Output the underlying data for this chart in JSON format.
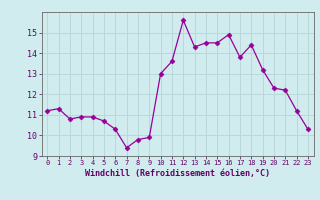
{
  "x": [
    0,
    1,
    2,
    3,
    4,
    5,
    6,
    7,
    8,
    9,
    10,
    11,
    12,
    13,
    14,
    15,
    16,
    17,
    18,
    19,
    20,
    21,
    22,
    23
  ],
  "y": [
    11.2,
    11.3,
    10.8,
    10.9,
    10.9,
    10.7,
    10.3,
    9.4,
    9.8,
    9.9,
    13.0,
    13.6,
    15.6,
    14.3,
    14.5,
    14.5,
    14.9,
    13.8,
    14.4,
    13.2,
    12.3,
    12.2,
    11.2,
    10.3
  ],
  "line_color": "#990099",
  "marker": "D",
  "marker_size": 2.5,
  "bg_color": "#d0ecee",
  "grid_color": "#b8d8da",
  "xlabel": "Windchill (Refroidissement éolien,°C)",
  "xlabel_color": "#660066",
  "tick_color": "#660066",
  "ylim": [
    9,
    16
  ],
  "yticks": [
    9,
    10,
    11,
    12,
    13,
    14,
    15
  ],
  "xlim": [
    -0.5,
    23.5
  ],
  "xticks": [
    0,
    1,
    2,
    3,
    4,
    5,
    6,
    7,
    8,
    9,
    10,
    11,
    12,
    13,
    14,
    15,
    16,
    17,
    18,
    19,
    20,
    21,
    22,
    23
  ],
  "xtick_labels": [
    "0",
    "1",
    "2",
    "3",
    "4",
    "5",
    "6",
    "7",
    "8",
    "9",
    "10",
    "11",
    "12",
    "13",
    "14",
    "15",
    "16",
    "17",
    "18",
    "19",
    "20",
    "21",
    "22",
    "23"
  ]
}
